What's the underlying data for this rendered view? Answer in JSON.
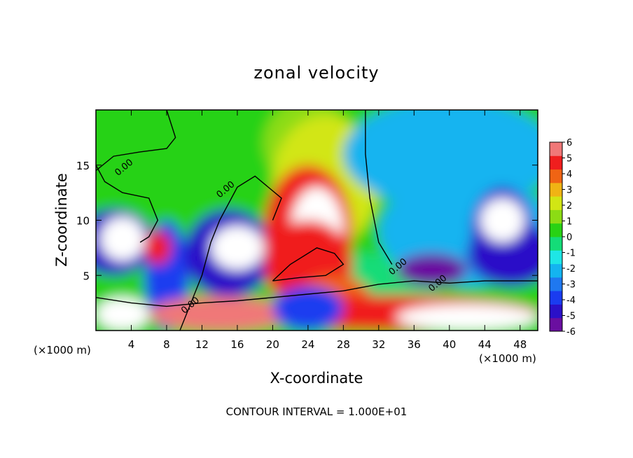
{
  "chart_data": {
    "type": "heatmap",
    "title": "zonal velocity",
    "xlabel": "X-coordinate",
    "ylabel": "Z-coordinate",
    "x_unit_left": "(×1000 m)",
    "x_unit_right": "(×1000 m)",
    "footer": "CONTOUR INTERVAL = 1.000E+01",
    "xlim": [
      0,
      50
    ],
    "ylim": [
      0,
      20
    ],
    "x_ticks": [
      4,
      8,
      12,
      16,
      20,
      24,
      28,
      32,
      36,
      40,
      44,
      48
    ],
    "y_ticks": [
      5,
      10,
      15
    ],
    "contour_label": "0.00",
    "colorbar": {
      "min": -6,
      "max": 6,
      "ticks": [
        6,
        5,
        4,
        3,
        2,
        1,
        0,
        -1,
        -2,
        -3,
        -4,
        -5,
        -6
      ],
      "colors": [
        "#6a0fa0",
        "#2a10c8",
        "#1a3cf0",
        "#1f78f0",
        "#14b4f0",
        "#1ee6e6",
        "#14dc78",
        "#28d214",
        "#8cdc14",
        "#d2e614",
        "#f0b414",
        "#f06414",
        "#f01e1e",
        "#f07878"
      ]
    },
    "regions": [
      {
        "kind": "background",
        "value": 0.2
      },
      {
        "cx": 10,
        "cy": 10,
        "rx": 14,
        "ry": 6,
        "value": 0.3
      },
      {
        "cx": 31,
        "cy": 4,
        "rx": 8,
        "ry": 3,
        "value": -0.5
      },
      {
        "cx": 24,
        "cy": 17,
        "rx": 5,
        "ry": 4,
        "value": 1.2
      },
      {
        "cx": 26,
        "cy": 13.5,
        "rx": 6,
        "ry": 6,
        "value": 2.5
      },
      {
        "cx": 40,
        "cy": 16,
        "rx": 12,
        "ry": 5,
        "value": -1.8
      },
      {
        "cx": 42,
        "cy": 9,
        "rx": 10,
        "ry": 5,
        "value": -2.5
      },
      {
        "cx": 47,
        "cy": 7,
        "rx": 5,
        "ry": 3,
        "value": -4.5
      },
      {
        "cx": 46,
        "cy": 9,
        "rx": 3.5,
        "ry": 4,
        "value": -4.8
      },
      {
        "cx": 2,
        "cy": 8,
        "rx": 4.5,
        "ry": 3,
        "value": -4.5
      },
      {
        "cx": 8,
        "cy": 5,
        "rx": 2.5,
        "ry": 5,
        "value": -4
      },
      {
        "cx": 15,
        "cy": 7,
        "rx": 5,
        "ry": 4,
        "value": -4.5
      },
      {
        "cx": 24,
        "cy": 9,
        "rx": 5,
        "ry": 6,
        "value": 4.8
      },
      {
        "cx": 25,
        "cy": 9,
        "rx": 3,
        "ry": 4,
        "value": 6.5
      },
      {
        "cx": 24,
        "cy": 6,
        "rx": 5,
        "ry": 4,
        "value": 5
      },
      {
        "cx": 27,
        "cy": 3,
        "rx": 4,
        "ry": 2,
        "value": 4
      },
      {
        "cx": 33,
        "cy": 1.6,
        "rx": 17,
        "ry": 1.6,
        "value": 5
      },
      {
        "cx": 42,
        "cy": 1.2,
        "rx": 8,
        "ry": 1.2,
        "value": 6.5
      },
      {
        "cx": 7,
        "cy": 7.5,
        "rx": 1.5,
        "ry": 1.5,
        "value": 5
      },
      {
        "cx": 14,
        "cy": 1.5,
        "rx": 8,
        "ry": 1.6,
        "value": 5.5
      },
      {
        "cx": 3,
        "cy": 1.5,
        "rx": 3,
        "ry": 1.5,
        "value": 6.5
      },
      {
        "cx": 24,
        "cy": 2,
        "rx": 4,
        "ry": 2,
        "value": -4
      },
      {
        "cx": 38,
        "cy": 5.5,
        "rx": 4,
        "ry": 1.5,
        "value": -5.5
      },
      {
        "cx": 3,
        "cy": 8.3,
        "rx": 2.5,
        "ry": 2,
        "value": 6.5
      },
      {
        "cx": 16,
        "cy": 7.5,
        "rx": 3,
        "ry": 2,
        "value": 6.5
      },
      {
        "cx": 46,
        "cy": 10,
        "rx": 2.5,
        "ry": 2,
        "value": 6.5
      }
    ],
    "contours": [
      [
        [
          0,
          14.5
        ],
        [
          2,
          15.8
        ],
        [
          5,
          16.2
        ],
        [
          8,
          16.5
        ],
        [
          9,
          17.5
        ],
        [
          8,
          20
        ]
      ],
      [
        [
          0,
          15
        ],
        [
          1,
          13.5
        ],
        [
          3,
          12.5
        ],
        [
          6,
          12
        ],
        [
          7,
          10
        ],
        [
          6,
          8.5
        ],
        [
          5,
          8
        ]
      ],
      [
        [
          33.5,
          6
        ],
        [
          32,
          8
        ],
        [
          31,
          12
        ],
        [
          30.5,
          16
        ],
        [
          30.5,
          20
        ]
      ],
      [
        [
          20,
          10
        ],
        [
          21,
          12
        ],
        [
          18,
          14
        ],
        [
          16,
          13
        ],
        [
          14,
          10
        ],
        [
          13,
          8
        ],
        [
          12,
          5
        ],
        [
          11,
          3
        ],
        [
          9.5,
          0
        ]
      ],
      [
        [
          0,
          3
        ],
        [
          4,
          2.5
        ],
        [
          8,
          2.2
        ],
        [
          12,
          2.5
        ],
        [
          16,
          2.7
        ],
        [
          20,
          3
        ],
        [
          24,
          3.3
        ],
        [
          28,
          3.6
        ],
        [
          32,
          4.2
        ],
        [
          36,
          4.5
        ],
        [
          40,
          4.3
        ],
        [
          44,
          4.5
        ],
        [
          48,
          4.5
        ],
        [
          50,
          4.5
        ]
      ],
      [
        [
          20,
          4.5
        ],
        [
          22,
          6
        ],
        [
          25,
          7.5
        ],
        [
          27,
          7
        ],
        [
          28,
          6
        ],
        [
          26,
          5
        ],
        [
          23,
          4.8
        ],
        [
          20,
          4.5
        ]
      ]
    ]
  }
}
